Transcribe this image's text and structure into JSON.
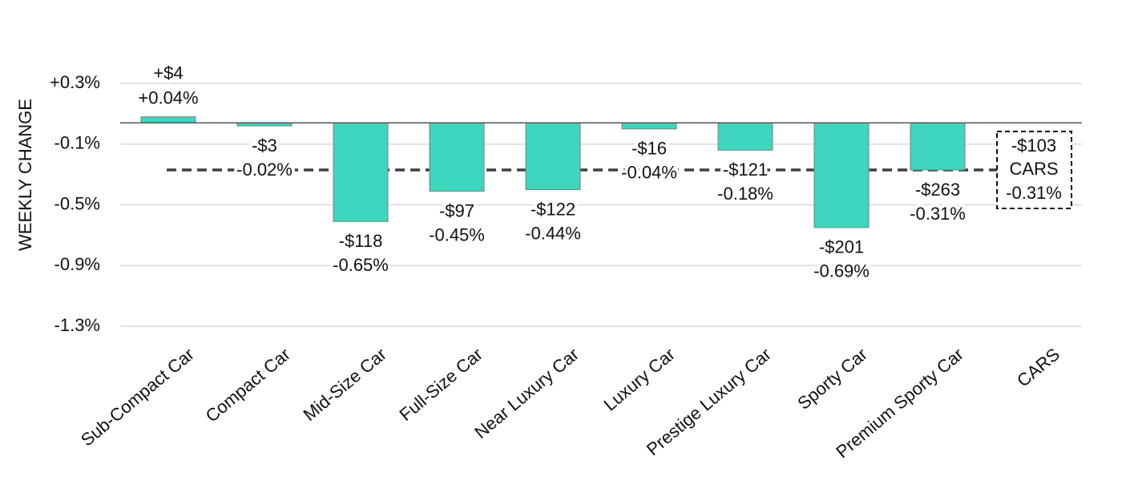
{
  "chart_data": {
    "type": "bar",
    "y_label": "WEEKLY CHANGE",
    "categories": [
      "Sub-Compact Car",
      "Compact Car",
      "Mid-Size Car",
      "Full-Size Car",
      "Near Luxury Car",
      "Luxury Car",
      "Prestige Luxury Car",
      "Sporty Car",
      "Premium Sporty Car",
      "CARS"
    ],
    "values": [
      0.04,
      -0.02,
      -0.65,
      -0.45,
      -0.44,
      -0.04,
      -0.18,
      -0.69,
      -0.31,
      null
    ],
    "value_labels": [
      "+0.04%",
      "-0.02%",
      "-0.65%",
      "-0.45%",
      "-0.44%",
      "-0.04%",
      "-0.18%",
      "-0.69%",
      "-0.31%",
      null
    ],
    "dollar_values": [
      4,
      -3,
      -118,
      -97,
      -122,
      -16,
      -121,
      -201,
      -263,
      null
    ],
    "dollar_labels": [
      "+$4",
      "-$3",
      "-$118",
      "-$97",
      "-$122",
      "-$16",
      "-$121",
      "-$201",
      "-$263",
      null
    ],
    "color": "#3dd6bc",
    "average": {
      "label": "CARS",
      "value": -0.31,
      "value_label": "-0.31%",
      "dollar_value": -103,
      "dollar_label": "-$103"
    },
    "ylim": [
      -1.34,
      0.26
    ],
    "yticks": [
      {
        "value": 0.26,
        "label": "+0.3%"
      },
      {
        "value": -0.14,
        "label": "-0.1%"
      },
      {
        "value": -0.54,
        "label": "-0.5%"
      },
      {
        "value": -0.94,
        "label": "-0.9%"
      },
      {
        "value": -1.34,
        "label": "-1.3%"
      }
    ],
    "grid": true
  }
}
